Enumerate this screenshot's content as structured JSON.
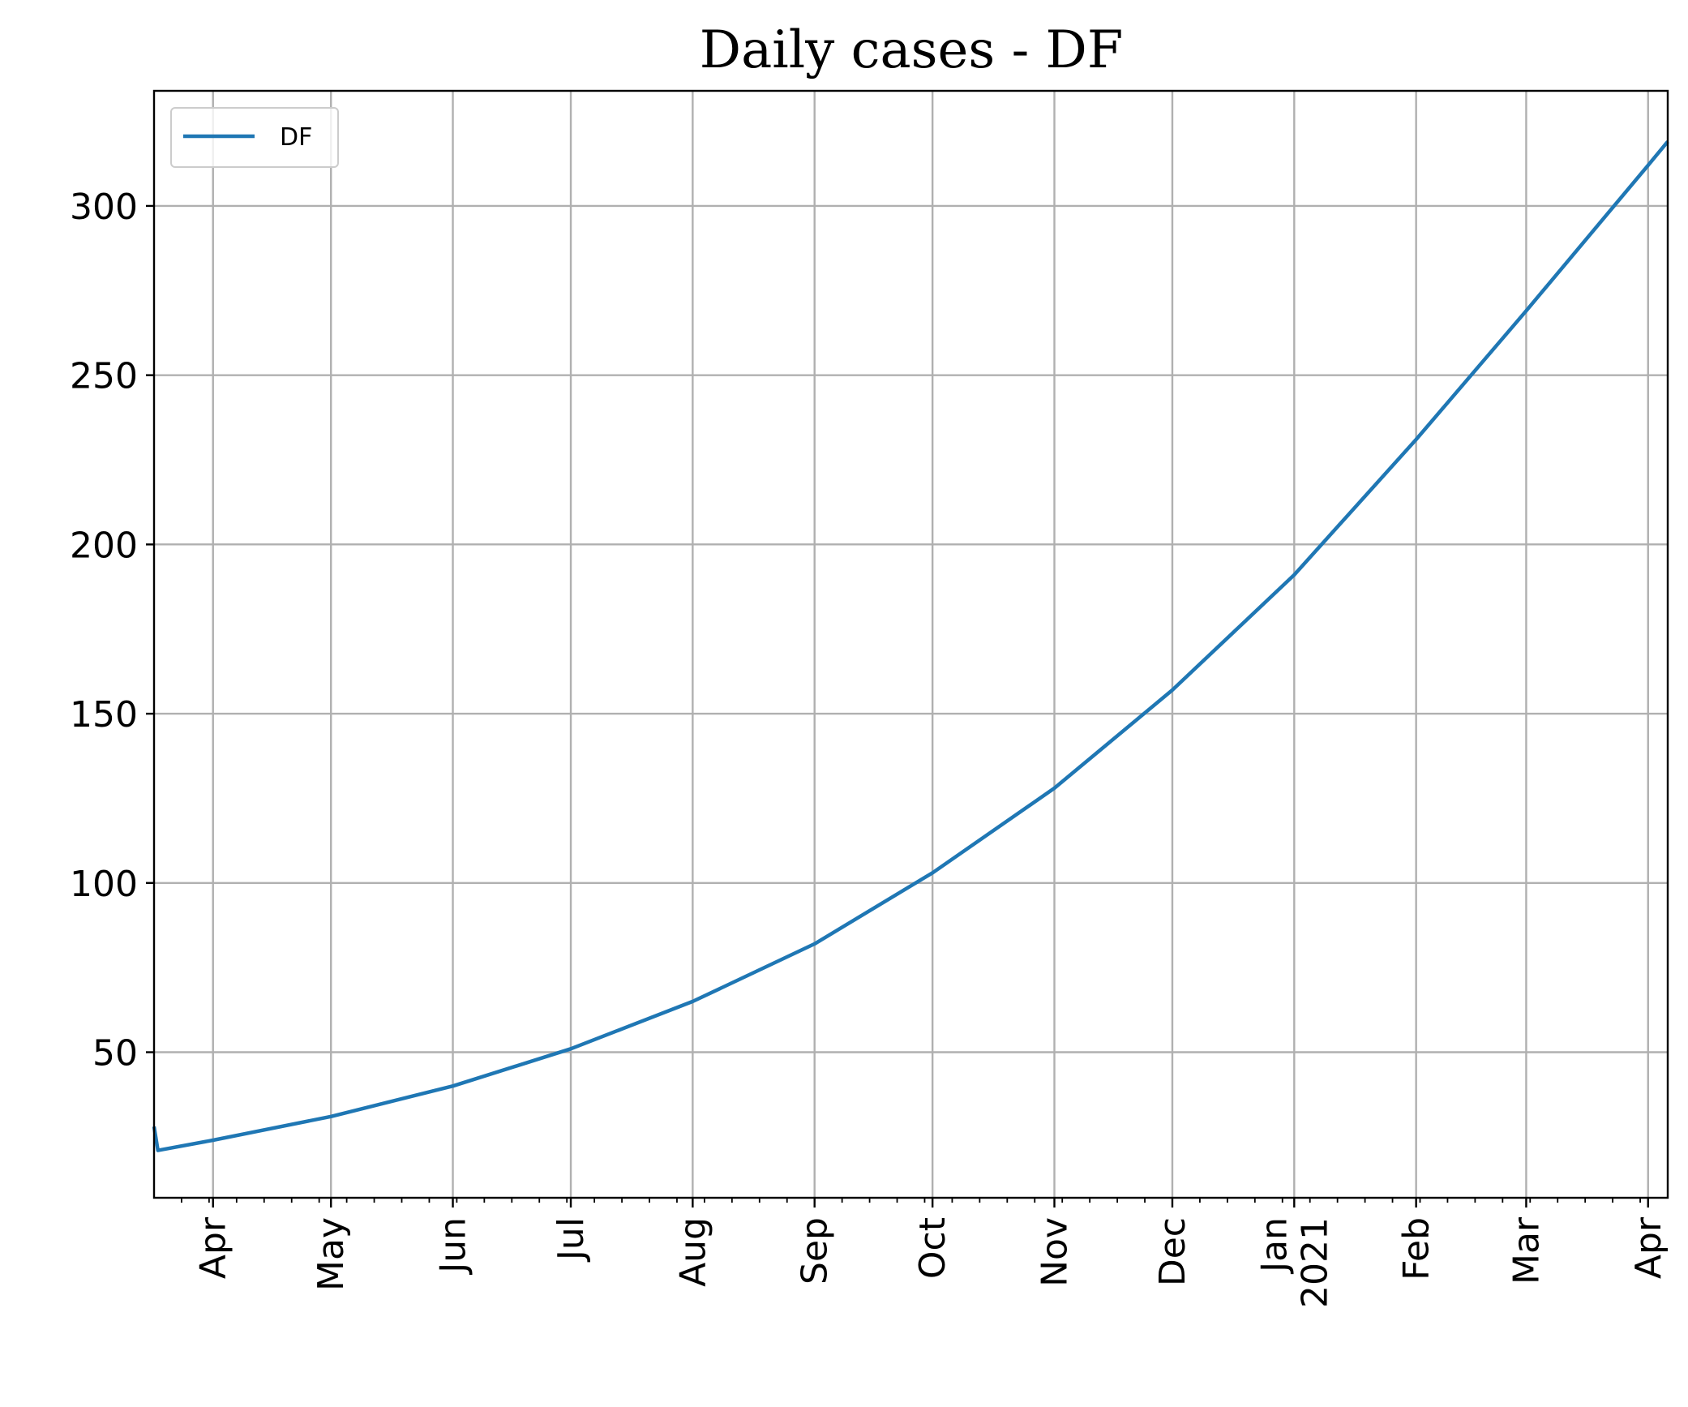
{
  "chart_data": {
    "type": "line",
    "title": "Daily cases - DF",
    "xlabel": "",
    "ylabel": "",
    "x_type": "date",
    "xlim": [
      "2020-03-17",
      "2021-04-06"
    ],
    "ylim": [
      7,
      334
    ],
    "y_ticks": [
      50,
      100,
      150,
      200,
      250,
      300
    ],
    "x_ticks": [
      {
        "date": "2020-04-01",
        "label": "Apr"
      },
      {
        "date": "2020-05-01",
        "label": "May"
      },
      {
        "date": "2020-06-01",
        "label": "Jun"
      },
      {
        "date": "2020-07-01",
        "label": "Jul"
      },
      {
        "date": "2020-08-01",
        "label": "Aug"
      },
      {
        "date": "2020-09-01",
        "label": "Sep"
      },
      {
        "date": "2020-10-01",
        "label": "Oct"
      },
      {
        "date": "2020-11-01",
        "label": "Nov"
      },
      {
        "date": "2020-12-01",
        "label": "Dec"
      },
      {
        "date": "2021-01-01",
        "label": "Jan\n2021"
      },
      {
        "date": "2021-02-01",
        "label": "Feb"
      },
      {
        "date": "2021-03-01",
        "label": "Mar"
      },
      {
        "date": "2021-04-01",
        "label": "Apr"
      }
    ],
    "minor_ticks": "weekly",
    "grid": true,
    "legend_position": "top-left",
    "series": [
      {
        "name": "DF",
        "color": "#1f77b4",
        "points": [
          [
            "2020-03-17",
            28
          ],
          [
            "2020-03-18",
            21
          ],
          [
            "2020-04-01",
            24
          ],
          [
            "2020-05-01",
            31
          ],
          [
            "2020-06-01",
            40
          ],
          [
            "2020-07-01",
            51
          ],
          [
            "2020-08-01",
            65
          ],
          [
            "2020-09-01",
            82
          ],
          [
            "2020-10-01",
            103
          ],
          [
            "2020-11-01",
            128
          ],
          [
            "2020-12-01",
            157
          ],
          [
            "2021-01-01",
            191
          ],
          [
            "2021-02-01",
            231
          ],
          [
            "2021-03-01",
            269
          ],
          [
            "2021-04-01",
            312
          ],
          [
            "2021-04-06",
            319
          ]
        ]
      }
    ]
  }
}
